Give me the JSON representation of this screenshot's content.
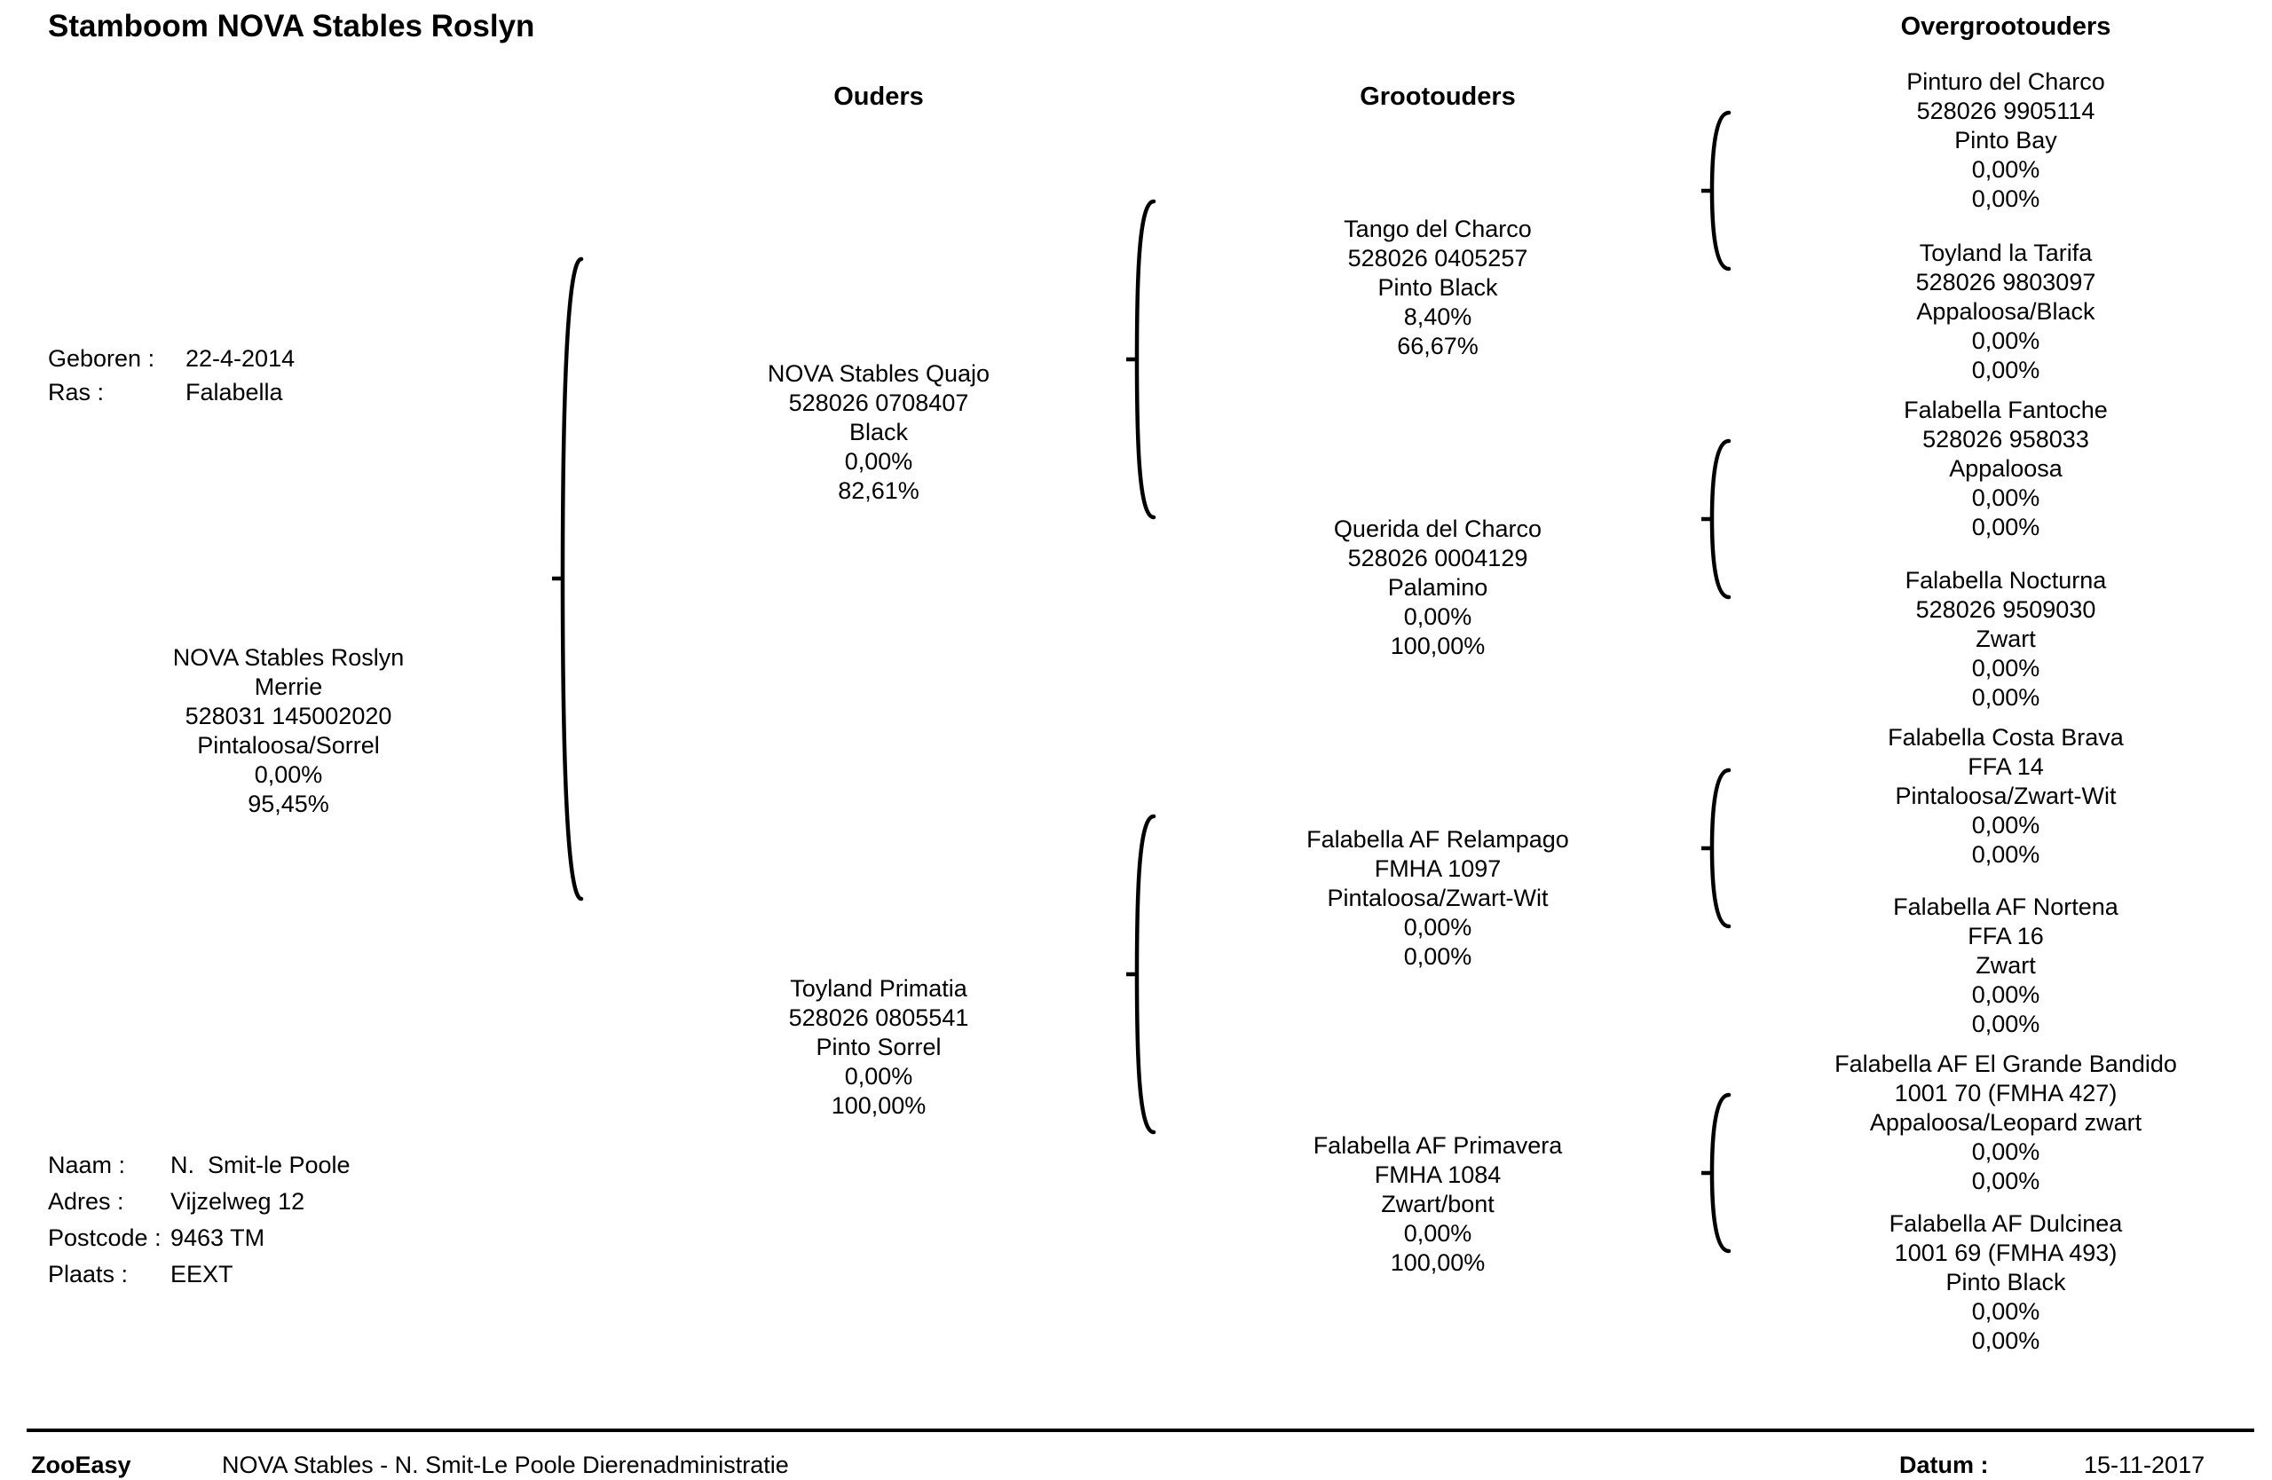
{
  "title": "Stamboom NOVA Stables Roslyn",
  "columns": {
    "parents": "Ouders",
    "grandparents": "Grootouders",
    "great_grandparents": "Overgrootouders"
  },
  "subject_info": {
    "born_label": "Geboren :",
    "born_value": "22-4-2014",
    "breed_label": "Ras :",
    "breed_value": "Falabella"
  },
  "subject": {
    "name": "NOVA Stables Roslyn",
    "sex": "Merrie",
    "id": "528031 145002020",
    "color": "Pintaloosa/Sorrel",
    "inbreeding": "0,00%",
    "pct": "95,45%"
  },
  "owner": {
    "name_label": "Naam :",
    "name_value": "N.  Smit-le Poole",
    "address_label": "Adres :",
    "address_value": "Vijzelweg 12",
    "postcode_label": "Postcode :",
    "postcode_value": "9463 TM",
    "city_label": "Plaats :",
    "city_value": "EEXT"
  },
  "parents": [
    {
      "name": "NOVA Stables Quajo",
      "id": "528026 0708407",
      "color": "Black",
      "inbreeding": "0,00%",
      "pct": "82,61%"
    },
    {
      "name": "Toyland Primatia",
      "id": "528026 0805541",
      "color": "Pinto Sorrel",
      "inbreeding": "0,00%",
      "pct": "100,00%"
    }
  ],
  "grandparents": [
    {
      "name": "Tango del Charco",
      "id": "528026 0405257",
      "color": "Pinto Black",
      "inbreeding": "8,40%",
      "pct": "66,67%"
    },
    {
      "name": "Querida del Charco",
      "id": "528026 0004129",
      "color": "Palamino",
      "inbreeding": "0,00%",
      "pct": "100,00%"
    },
    {
      "name": "Falabella AF Relampago",
      "id": "FMHA 1097",
      "color": "Pintaloosa/Zwart-Wit",
      "inbreeding": "0,00%",
      "pct": "0,00%"
    },
    {
      "name": "Falabella AF Primavera",
      "id": "FMHA 1084",
      "color": "Zwart/bont",
      "inbreeding": "0,00%",
      "pct": "100,00%"
    }
  ],
  "great_grandparents": [
    {
      "name": "Pinturo del Charco",
      "id": "528026 9905114",
      "color": "Pinto Bay",
      "inbreeding": "0,00%",
      "pct": "0,00%"
    },
    {
      "name": "Toyland la Tarifa",
      "id": "528026 9803097",
      "color": "Appaloosa/Black",
      "inbreeding": "0,00%",
      "pct": "0,00%"
    },
    {
      "name": "Falabella Fantoche",
      "id": "528026 958033",
      "color": "Appaloosa",
      "inbreeding": "0,00%",
      "pct": "0,00%"
    },
    {
      "name": "Falabella Nocturna",
      "id": "528026 9509030",
      "color": "Zwart",
      "inbreeding": "0,00%",
      "pct": "0,00%"
    },
    {
      "name": "Falabella Costa Brava",
      "id": "FFA 14",
      "color": "Pintaloosa/Zwart-Wit",
      "inbreeding": "0,00%",
      "pct": "0,00%"
    },
    {
      "name": "Falabella AF Nortena",
      "id": "FFA 16",
      "color": "Zwart",
      "inbreeding": "0,00%",
      "pct": "0,00%"
    },
    {
      "name": "Falabella AF El Grande Bandido",
      "id": "1001 70 (FMHA 427)",
      "color": "Appaloosa/Leopard zwart",
      "inbreeding": "0,00%",
      "pct": "0,00%"
    },
    {
      "name": "Falabella AF Dulcinea",
      "id": "1001 69 (FMHA 493)",
      "color": "Pinto Black",
      "inbreeding": "0,00%",
      "pct": "0,00%"
    }
  ],
  "footer": {
    "brand": "ZooEasy",
    "description": "NOVA Stables - N. Smit-Le Poole Dierenadministratie",
    "date_label": "Datum :",
    "date_value": "15-11-2017"
  }
}
